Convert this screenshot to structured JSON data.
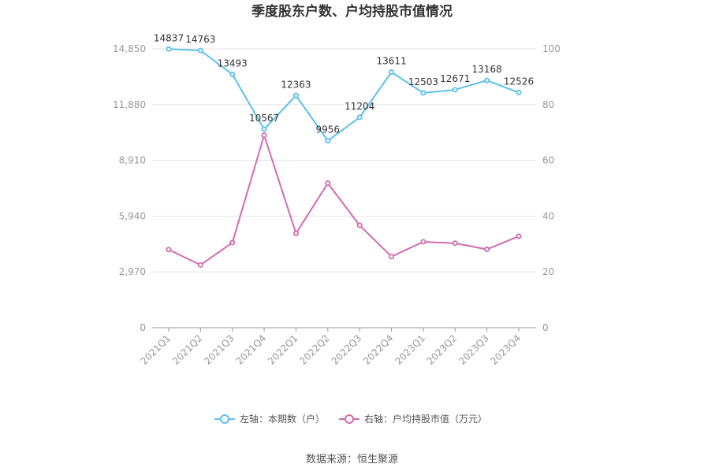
{
  "chart_data": {
    "type": "line",
    "title": "季度股东户数、户均持股市值情况",
    "categories": [
      "2021Q1",
      "2021Q2",
      "2021Q3",
      "2021Q4",
      "2022Q1",
      "2022Q2",
      "2022Q3",
      "2022Q4",
      "2023Q1",
      "2023Q2",
      "2023Q3",
      "2023Q4"
    ],
    "left_axis": {
      "ticks": [
        "0",
        "2,970",
        "5,940",
        "8,910",
        "11,880",
        "14,850"
      ],
      "ylim": [
        0,
        14850
      ]
    },
    "right_axis": {
      "ticks": [
        "0",
        "20",
        "40",
        "60",
        "80",
        "100"
      ],
      "ylim": [
        0,
        100
      ]
    },
    "series": [
      {
        "name": "左轴：本期数（户）",
        "axis": "left",
        "color": "#5bc0eb",
        "values": [
          14837,
          14763,
          13493,
          10567,
          12363,
          9956,
          11204,
          13611,
          12503,
          12671,
          13168,
          12526
        ],
        "labels": [
          "14837",
          "14763",
          "13493",
          "10567",
          "12363",
          "9956",
          "11204",
          "13611",
          "12503",
          "12671",
          "13168",
          "12526"
        ]
      },
      {
        "name": "右轴：户均持股市值（万元）",
        "axis": "right",
        "color": "#d36bb0",
        "values": [
          28.0,
          22.5,
          30.5,
          69.0,
          33.8,
          51.8,
          36.7,
          25.5,
          30.8,
          30.3,
          28.1,
          32.8
        ]
      }
    ],
    "legend_position": "bottom",
    "grid": true
  },
  "source": "数据来源：恒生聚源"
}
